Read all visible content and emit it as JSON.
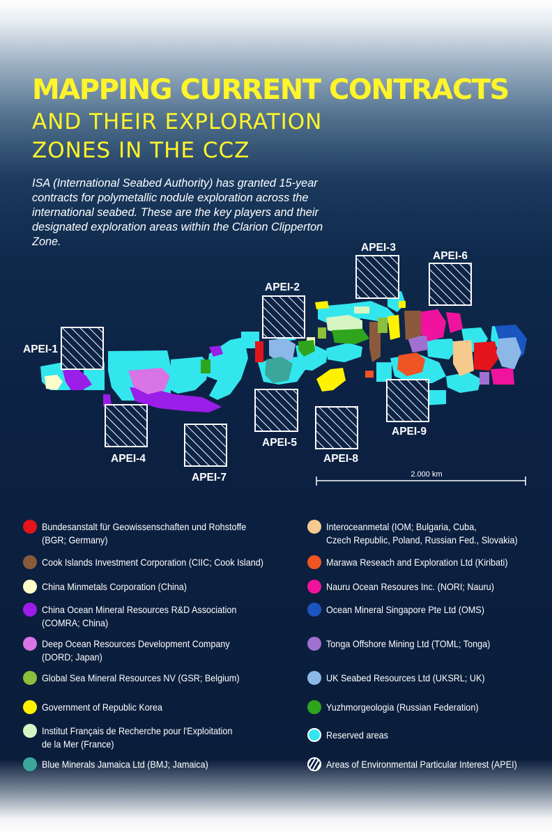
{
  "title_line1": "MAPPING CURRENT CONTRACTS",
  "title_line2": "AND THEIR EXPLORATION",
  "title_line3": "ZONES IN THE CCZ",
  "intro": "ISA (International Seabed Authority) has granted 15-year contracts for polymetallic nodule exploration across the international seabed. These are the key players and their designated exploration areas within the Clarion Clipperton Zone.",
  "apei_labels": [
    "APEI-1",
    "APEI-2",
    "APEI-3",
    "APEI-4",
    "APEI-5",
    "APEI-6",
    "APEI-7",
    "APEI-8",
    "APEI-9"
  ],
  "scale_label": "2.000 km",
  "legend_left": [
    {
      "label": "Bundesanstalt für Geowissenschaften und Rohstoffe\n(BGR; Germany)",
      "color": "#e3141b"
    },
    {
      "label": "Cook Islands Investment Corporation (CIIC; Cook Island)",
      "color": "#8b5a3c"
    },
    {
      "label": "China Minmetals Corporation (China)",
      "color": "#fefcc8"
    },
    {
      "label": "China Ocean Mineral Resources R&D Association\n(COMRA; China)",
      "color": "#9b1de8"
    },
    {
      "label": "Deep Ocean Resources Development Company\n(DORD; Japan)",
      "color": "#d874e6"
    },
    {
      "label": "Global Sea Mineral Resources NV (GSR; Belgium)",
      "color": "#8cbf3c"
    },
    {
      "label": "Government of Republic Korea",
      "color": "#fff200"
    },
    {
      "label": "Institut Français de Recherche pour l'Exploitation\nde la Mer (France)",
      "color": "#d6f5c2"
    },
    {
      "label": "Blue Minerals Jamaica Ltd (BMJ; Jamaica)",
      "color": "#3aa79a"
    }
  ],
  "legend_right": [
    {
      "label": "Interoceanmetal (IOM; Bulgaria, Cuba,\nCzech Republic, Poland, Russian Fed., Slovakia)",
      "color": "#f6c98c"
    },
    {
      "label": "Marawa Reseach and Exploration Ltd (Kiribati)",
      "color": "#ef5423"
    },
    {
      "label": "Nauru Ocean Resoures Inc. (NORI; Nauru)",
      "color": "#f0139e"
    },
    {
      "label": "Ocean Mineral Singapore Pte Ltd (OMS)",
      "color": "#1a55c0"
    },
    {
      "label": "Tonga Offshore Mining Ltd (TOML; Tonga)",
      "color": "#a070d0"
    },
    {
      "label": "UK Seabed Resources Ltd (UKSRL; UK)",
      "color": "#8cb8e8"
    },
    {
      "label": "Yuzhmorgeologia (Russian Federation)",
      "color": "#2ea51c"
    },
    {
      "label": "Reserved areas",
      "color": "#33e6ee"
    },
    {
      "label": "Areas of Environmental Particular Interest (APEI)",
      "color": "#ffffff"
    }
  ]
}
